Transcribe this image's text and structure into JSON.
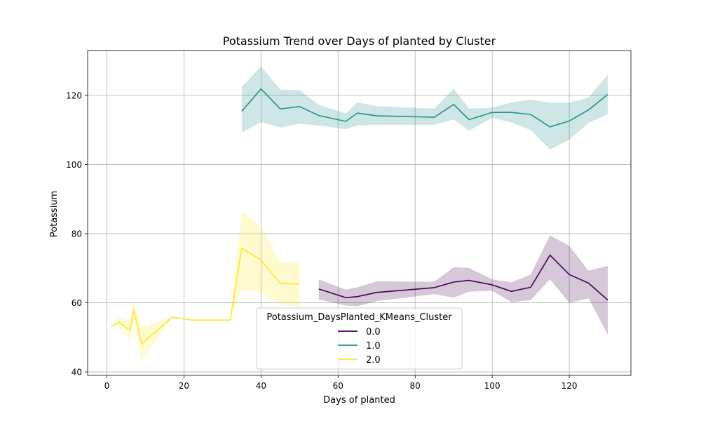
{
  "chart_data": {
    "type": "line",
    "title": "Potassium Trend over Days of planted by Cluster",
    "xlabel": "Days of planted",
    "ylabel": "Potassium",
    "xlim": [
      -5,
      136
    ],
    "ylim": [
      39,
      133
    ],
    "xticks": [
      0,
      20,
      40,
      60,
      80,
      100,
      120
    ],
    "yticks": [
      40,
      60,
      80,
      100,
      120
    ],
    "grid": true,
    "legend": {
      "title": "Potassium_DaysPlanted_KMeans_Cluster",
      "placement": "lower-center"
    },
    "series": [
      {
        "name": "0.0",
        "color": "#440154",
        "x": [
          55,
          62,
          65,
          70,
          85,
          90,
          94,
          100,
          105,
          110,
          115,
          120,
          125,
          130
        ],
        "y": [
          64,
          61.5,
          61.8,
          63,
          64.4,
          66,
          66.5,
          65.2,
          63.3,
          64.5,
          73.8,
          68.2,
          65.7,
          60.8
        ],
        "lower": [
          61,
          59.2,
          59,
          60.5,
          62.5,
          61.5,
          63.2,
          63.5,
          60.2,
          60.8,
          66.8,
          60,
          61.3,
          50.8
        ],
        "upper": [
          66.8,
          63.8,
          64.5,
          66.2,
          66.1,
          70.3,
          70.1,
          66.8,
          65.9,
          68.2,
          79.5,
          76.5,
          69.3,
          70.7
        ]
      },
      {
        "name": "1.0",
        "color": "#21918c",
        "x": [
          35,
          40,
          45,
          50,
          55,
          62,
          65,
          70,
          85,
          90,
          94,
          100,
          105,
          110,
          115,
          120,
          125,
          130
        ],
        "y": [
          115.4,
          121.9,
          116.1,
          116.8,
          114.2,
          112.5,
          114.9,
          114.1,
          113.7,
          117.4,
          113,
          115.1,
          115.1,
          114.5,
          110.9,
          112.6,
          115.8,
          120.3
        ],
        "lower": [
          109.3,
          112.3,
          110.7,
          111.8,
          111.3,
          110.2,
          111.3,
          111.5,
          111.5,
          113,
          109.8,
          113.5,
          112.2,
          110,
          104.3,
          107.2,
          112,
          114.6
        ],
        "upper": [
          122.5,
          128.4,
          121.7,
          121.6,
          117.3,
          114.8,
          118,
          116.9,
          116.2,
          122,
          116.2,
          116.5,
          118,
          118.8,
          117.9,
          117.9,
          119.4,
          126.1
        ]
      },
      {
        "name": "2.0",
        "color": "#fde725",
        "x": [
          1,
          3,
          6,
          7,
          9,
          17,
          22,
          32,
          35,
          40,
          45,
          50
        ],
        "y": [
          53.1,
          54.4,
          52.1,
          57.9,
          48.1,
          55.9,
          55,
          55,
          75.8,
          72.4,
          65.6,
          65.4
        ],
        "lower": [
          53.1,
          53.2,
          49.5,
          55.5,
          43.2,
          55.9,
          55,
          55,
          63.8,
          63,
          59.5,
          58.9
        ],
        "upper": [
          53.1,
          55.6,
          54.7,
          60.3,
          53,
          55.9,
          55,
          55,
          86.5,
          82.1,
          71.8,
          72
        ]
      }
    ]
  }
}
